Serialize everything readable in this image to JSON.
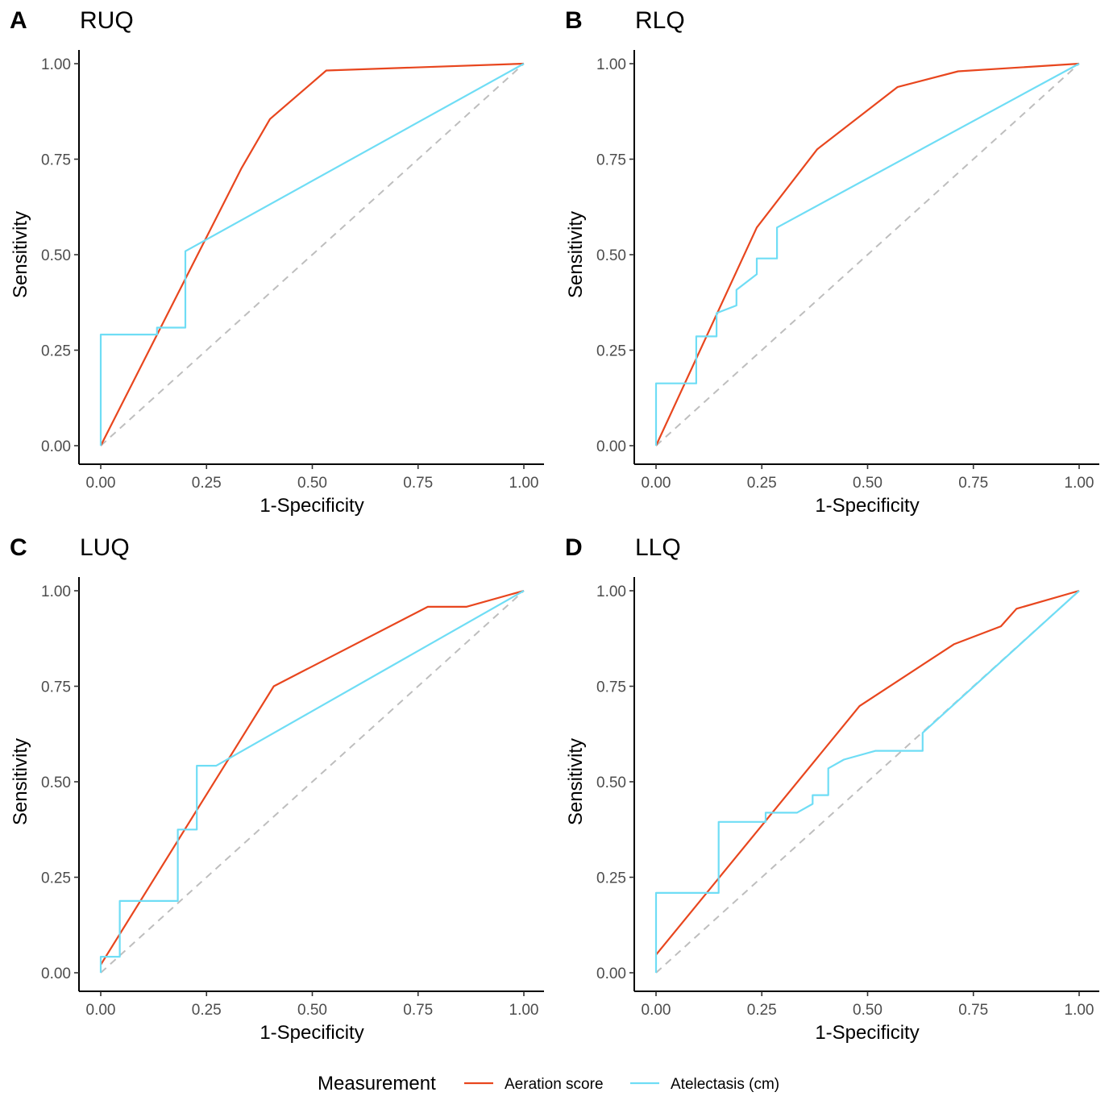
{
  "colors": {
    "aeration": "#E8461E",
    "atelectasis": "#6FDDF5",
    "reference": "#BEBEBE",
    "axis": "#000000"
  },
  "legend": {
    "title": "Measurement",
    "items": [
      {
        "label": "Aeration score",
        "color_key": "aeration"
      },
      {
        "label": "Atelectasis (cm)",
        "color_key": "atelectasis"
      }
    ]
  },
  "chart_data": [
    {
      "type": "line",
      "panel_letter": "A",
      "title": "RUQ",
      "xlabel": "1-Specificity",
      "ylabel": "Sensitivity",
      "xlim": [
        0,
        1
      ],
      "ylim": [
        0,
        1
      ],
      "x_ticks": [
        "0.00",
        "0.25",
        "0.50",
        "0.75",
        "1.00"
      ],
      "y_ticks": [
        "0.00",
        "0.25",
        "0.50",
        "0.75",
        "1.00"
      ],
      "series": [
        {
          "name": "Aeration score",
          "color_key": "aeration",
          "points": [
            [
              0,
              0
            ],
            [
              0.333,
              0.727
            ],
            [
              0.4,
              0.855
            ],
            [
              0.533,
              0.982
            ],
            [
              1,
              1
            ]
          ]
        },
        {
          "name": "Atelectasis (cm)",
          "color_key": "atelectasis",
          "points": [
            [
              0,
              0
            ],
            [
              0,
              0.291
            ],
            [
              0.133,
              0.291
            ],
            [
              0.133,
              0.309
            ],
            [
              0.2,
              0.309
            ],
            [
              0.2,
              0.509
            ],
            [
              1,
              1
            ]
          ]
        }
      ]
    },
    {
      "type": "line",
      "panel_letter": "B",
      "title": "RLQ",
      "xlabel": "1-Specificity",
      "ylabel": "Sensitivity",
      "xlim": [
        0,
        1
      ],
      "ylim": [
        0,
        1
      ],
      "x_ticks": [
        "0.00",
        "0.25",
        "0.50",
        "0.75",
        "1.00"
      ],
      "y_ticks": [
        "0.00",
        "0.25",
        "0.50",
        "0.75",
        "1.00"
      ],
      "series": [
        {
          "name": "Aeration score",
          "color_key": "aeration",
          "points": [
            [
              0,
              0
            ],
            [
              0.238,
              0.571
            ],
            [
              0.381,
              0.776
            ],
            [
              0.571,
              0.939
            ],
            [
              0.714,
              0.98
            ],
            [
              1,
              1
            ]
          ]
        },
        {
          "name": "Atelectasis (cm)",
          "color_key": "atelectasis",
          "points": [
            [
              0,
              0
            ],
            [
              0,
              0.163
            ],
            [
              0.095,
              0.163
            ],
            [
              0.095,
              0.286
            ],
            [
              0.143,
              0.286
            ],
            [
              0.143,
              0.347
            ],
            [
              0.19,
              0.367
            ],
            [
              0.19,
              0.408
            ],
            [
              0.238,
              0.449
            ],
            [
              0.238,
              0.49
            ],
            [
              0.286,
              0.49
            ],
            [
              0.286,
              0.571
            ],
            [
              1,
              1
            ]
          ]
        }
      ]
    },
    {
      "type": "line",
      "panel_letter": "C",
      "title": "LUQ",
      "xlabel": "1-Specificity",
      "ylabel": "Sensitivity",
      "xlim": [
        0,
        1
      ],
      "ylim": [
        0,
        1
      ],
      "x_ticks": [
        "0.00",
        "0.25",
        "0.50",
        "0.75",
        "1.00"
      ],
      "y_ticks": [
        "0.00",
        "0.25",
        "0.50",
        "0.75",
        "1.00"
      ],
      "series": [
        {
          "name": "Aeration score",
          "color_key": "aeration",
          "points": [
            [
              0,
              0.021
            ],
            [
              0.409,
              0.75
            ],
            [
              0.773,
              0.958
            ],
            [
              0.864,
              0.958
            ],
            [
              1,
              1
            ]
          ]
        },
        {
          "name": "Atelectasis (cm)",
          "color_key": "atelectasis",
          "points": [
            [
              0,
              0
            ],
            [
              0,
              0.042
            ],
            [
              0.045,
              0.042
            ],
            [
              0.045,
              0.188
            ],
            [
              0.182,
              0.188
            ],
            [
              0.182,
              0.375
            ],
            [
              0.227,
              0.375
            ],
            [
              0.227,
              0.542
            ],
            [
              0.273,
              0.542
            ],
            [
              1,
              1
            ]
          ]
        }
      ]
    },
    {
      "type": "line",
      "panel_letter": "D",
      "title": "LLQ",
      "xlabel": "1-Specificity",
      "ylabel": "Sensitivity",
      "xlim": [
        0,
        1
      ],
      "ylim": [
        0,
        1
      ],
      "x_ticks": [
        "0.00",
        "0.25",
        "0.50",
        "0.75",
        "1.00"
      ],
      "y_ticks": [
        "0.00",
        "0.25",
        "0.50",
        "0.75",
        "1.00"
      ],
      "series": [
        {
          "name": "Aeration score",
          "color_key": "aeration",
          "points": [
            [
              0,
              0.047
            ],
            [
              0.481,
              0.698
            ],
            [
              0.704,
              0.86
            ],
            [
              0.815,
              0.907
            ],
            [
              0.852,
              0.953
            ],
            [
              1,
              1
            ]
          ]
        },
        {
          "name": "Atelectasis (cm)",
          "color_key": "atelectasis",
          "points": [
            [
              0,
              0
            ],
            [
              0,
              0.209
            ],
            [
              0.148,
              0.209
            ],
            [
              0.148,
              0.395
            ],
            [
              0.259,
              0.395
            ],
            [
              0.259,
              0.419
            ],
            [
              0.333,
              0.419
            ],
            [
              0.37,
              0.442
            ],
            [
              0.37,
              0.465
            ],
            [
              0.407,
              0.465
            ],
            [
              0.407,
              0.535
            ],
            [
              0.444,
              0.558
            ],
            [
              0.519,
              0.581
            ],
            [
              0.63,
              0.581
            ],
            [
              0.63,
              0.628
            ],
            [
              1,
              1
            ]
          ]
        }
      ]
    }
  ]
}
